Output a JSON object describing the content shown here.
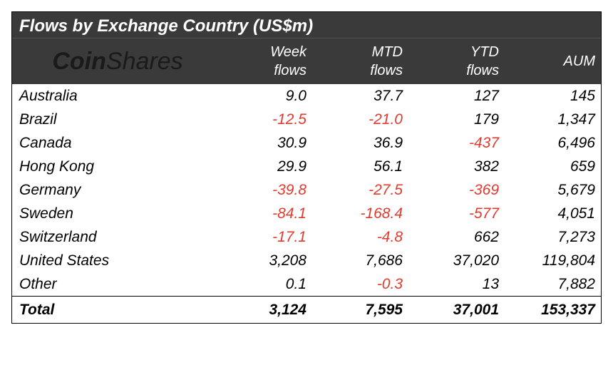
{
  "title": "Flows by Exchange Country (US$m)",
  "logo": {
    "bold": "Coin",
    "light": "Shares"
  },
  "columns": [
    {
      "key": "week",
      "line1": "Week",
      "line2": "flows"
    },
    {
      "key": "mtd",
      "line1": "MTD",
      "line2": "flows"
    },
    {
      "key": "ytd",
      "line1": "YTD",
      "line2": "flows"
    },
    {
      "key": "aum",
      "line1": "",
      "line2": "AUM"
    }
  ],
  "rows": [
    {
      "country": "Australia",
      "week": "9.0",
      "mtd": "37.7",
      "ytd": "127",
      "aum": "145"
    },
    {
      "country": "Brazil",
      "week": "-12.5",
      "mtd": "-21.0",
      "ytd": "179",
      "aum": "1,347"
    },
    {
      "country": "Canada",
      "week": "30.9",
      "mtd": "36.9",
      "ytd": "-437",
      "aum": "6,496"
    },
    {
      "country": "Hong Kong",
      "week": "29.9",
      "mtd": "56.1",
      "ytd": "382",
      "aum": "659"
    },
    {
      "country": "Germany",
      "week": "-39.8",
      "mtd": "-27.5",
      "ytd": "-369",
      "aum": "5,679"
    },
    {
      "country": "Sweden",
      "week": "-84.1",
      "mtd": "-168.4",
      "ytd": "-577",
      "aum": "4,051"
    },
    {
      "country": "Switzerland",
      "week": "-17.1",
      "mtd": "-4.8",
      "ytd": "662",
      "aum": "7,273"
    },
    {
      "country": "United States",
      "week": "3,208",
      "mtd": "7,686",
      "ytd": "37,020",
      "aum": "119,804"
    },
    {
      "country": "Other",
      "week": "0.1",
      "mtd": "-0.3",
      "ytd": "13",
      "aum": "7,882"
    }
  ],
  "total": {
    "label": "Total",
    "week": "3,124",
    "mtd": "7,595",
    "ytd": "37,001",
    "aum": "153,337"
  },
  "colors": {
    "header_bg": "#3a3a3a",
    "header_fg": "#ffffff",
    "negative": "#e23a2e",
    "body_fg": "#000000",
    "logo_fg": "#1a1a1a",
    "border": "#000000",
    "background": "#ffffff"
  },
  "typography": {
    "title_pt": 24,
    "header_pt": 20,
    "body_pt": 21,
    "logo_pt": 34
  }
}
